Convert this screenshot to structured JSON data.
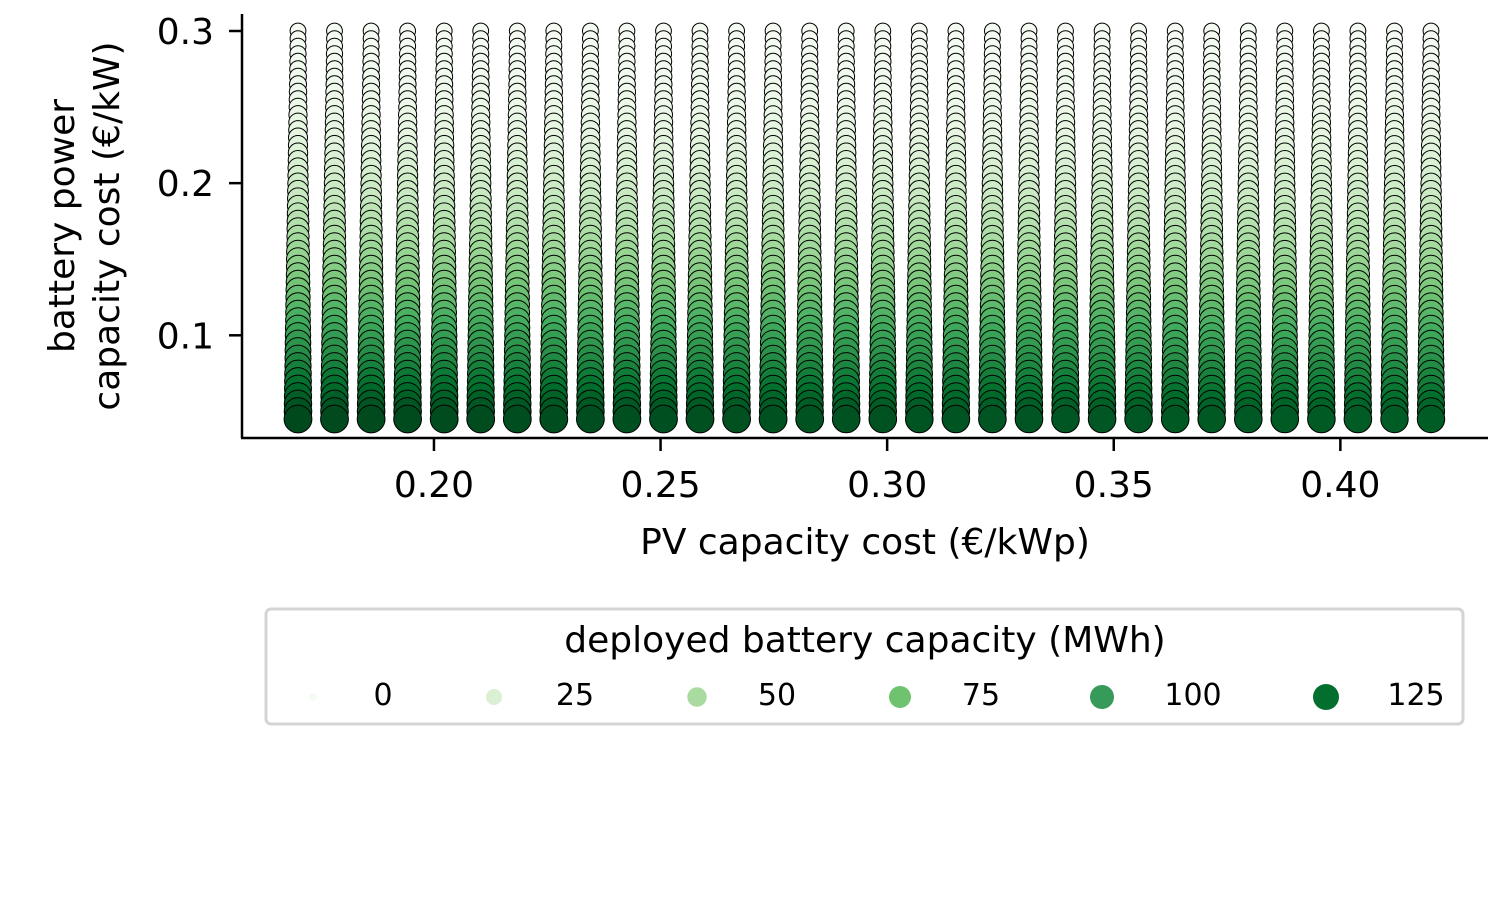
{
  "chart_data": {
    "type": "scatter",
    "title": "",
    "xlabel": "PV capacity cost (€/kWp)",
    "ylabel_lines": [
      "battery power",
      "capacity cost (€/kW)"
    ],
    "xlim": [
      0.1625,
      0.4275
    ],
    "ylim": [
      0.035,
      0.31
    ],
    "xticks": [
      {
        "value": 0.2,
        "label": "0.20"
      },
      {
        "value": 0.25,
        "label": "0.25"
      },
      {
        "value": 0.3,
        "label": "0.30"
      },
      {
        "value": 0.35,
        "label": "0.35"
      },
      {
        "value": 0.4,
        "label": "0.40"
      }
    ],
    "yticks": [
      {
        "value": 0.1,
        "label": "0.1"
      },
      {
        "value": 0.2,
        "label": "0.2"
      },
      {
        "value": 0.3,
        "label": "0.3"
      }
    ],
    "grid": false,
    "x_values": {
      "start": 0.17,
      "stop": 0.42,
      "count": 32
    },
    "y_values": {
      "start": 0.045,
      "stop": 0.3,
      "count": 52
    },
    "size_and_color_variable": "deployed battery capacity (MWh)",
    "colormap": "greens",
    "colormap_stops": [
      "#f7fcf5",
      "#e5f5e0",
      "#c7e9c0",
      "#a1d99b",
      "#74c476",
      "#41ab5d",
      "#238b45",
      "#006d2c",
      "#00441b"
    ],
    "value_range": [
      0,
      130
    ],
    "legend": {
      "title": "deployed battery capacity (MWh)",
      "placement": "below",
      "entries": [
        {
          "label": "0",
          "value": 0,
          "color": "#f4fbf2"
        },
        {
          "label": "25",
          "value": 25,
          "color": "#d9f0d3"
        },
        {
          "label": "50",
          "value": 50,
          "color": "#a9dba1"
        },
        {
          "label": "75",
          "value": 75,
          "color": "#6fc26e"
        },
        {
          "label": "100",
          "value": 100,
          "color": "#37995a"
        },
        {
          "label": "125",
          "value": 125,
          "color": "#026f2e"
        }
      ]
    },
    "marker_edge_color": "#000000"
  }
}
